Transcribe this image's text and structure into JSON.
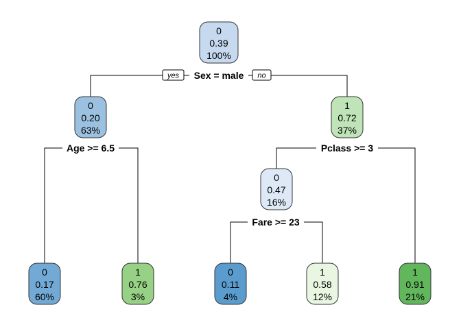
{
  "branch_labels": {
    "yes": "yes",
    "no": "no"
  },
  "nodes": [
    {
      "id": "root",
      "cls": "0",
      "prob": "0.39",
      "pct": "100%",
      "color": "#c6d9ef"
    },
    {
      "id": "n2",
      "cls": "0",
      "prob": "0.20",
      "pct": "63%",
      "color": "#9cc1e0"
    },
    {
      "id": "n3",
      "cls": "1",
      "prob": "0.72",
      "pct": "37%",
      "color": "#bfe4b8"
    },
    {
      "id": "n4",
      "cls": "0",
      "prob": "0.17",
      "pct": "60%",
      "color": "#72aad5"
    },
    {
      "id": "n5",
      "cls": "1",
      "prob": "0.76",
      "pct": "3%",
      "color": "#96d185"
    },
    {
      "id": "n6",
      "cls": "0",
      "prob": "0.47",
      "pct": "16%",
      "color": "#dde9f6"
    },
    {
      "id": "n12",
      "cls": "0",
      "prob": "0.11",
      "pct": "4%",
      "color": "#5b9ccf"
    },
    {
      "id": "n13",
      "cls": "1",
      "prob": "0.58",
      "pct": "12%",
      "color": "#e8f6e2"
    },
    {
      "id": "n7",
      "cls": "1",
      "prob": "0.91",
      "pct": "21%",
      "color": "#62b75c"
    }
  ],
  "splits": [
    {
      "id": "s-root",
      "label": "Sex = male"
    },
    {
      "id": "s-n2",
      "label": "Age >= 6.5"
    },
    {
      "id": "s-n3",
      "label": "Pclass >= 3"
    },
    {
      "id": "s-n6",
      "label": "Fare >= 23"
    }
  ]
}
